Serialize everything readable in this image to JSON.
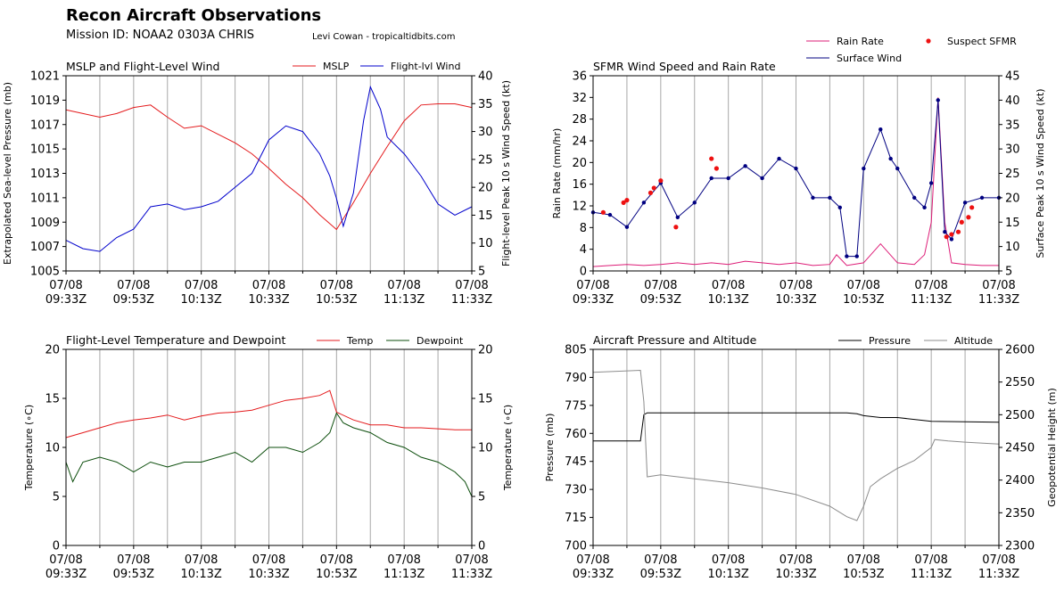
{
  "header": {
    "title": "Recon Aircraft Observations",
    "mission": "Mission ID: NOAA2 0303A CHRIS",
    "credit": "Levi Cowan - tropicaltidbits.com"
  },
  "time_ticks": [
    "07/08\n09:33Z",
    "07/08\n09:53Z",
    "07/08\n10:13Z",
    "07/08\n10:33Z",
    "07/08\n10:53Z",
    "07/08\n11:13Z",
    "07/08\n11:33Z"
  ],
  "chart_data": [
    {
      "id": "mslp_wind",
      "type": "line",
      "title": "MSLP and Flight-Level Wind",
      "xlabel": "",
      "ylabel": "Extrapolated Sea-level Pressure (mb)",
      "y2label": "Flight-level Peak 10 s Wind Speed (kt)",
      "xlim_minutes": [
        0,
        120
      ],
      "ylim": [
        1005,
        1021
      ],
      "yticks": [
        1005,
        1007,
        1009,
        1011,
        1013,
        1015,
        1017,
        1019,
        1021
      ],
      "y2lim": [
        5,
        40
      ],
      "y2ticks": [
        5,
        10,
        15,
        20,
        25,
        30,
        35,
        40
      ],
      "legend": "top-right",
      "series": [
        {
          "name": "MSLP",
          "axis": "left",
          "color": "#e41a1c",
          "x": [
            0,
            5,
            10,
            15,
            20,
            25,
            30,
            35,
            40,
            45,
            50,
            55,
            60,
            65,
            70,
            75,
            80,
            85,
            90,
            95,
            100,
            105,
            110,
            115,
            120
          ],
          "values": [
            1018.2,
            1017.9,
            1017.6,
            1017.9,
            1018.4,
            1018.6,
            1017.6,
            1016.7,
            1016.9,
            1016.2,
            1015.5,
            1014.6,
            1013.4,
            1012.1,
            1011.0,
            1009.6,
            1008.4,
            1010.6,
            1013.0,
            1015.2,
            1017.3,
            1018.6,
            1018.7,
            1018.7,
            1018.4
          ]
        },
        {
          "name": "Flight-lvl Wind",
          "axis": "right",
          "color": "#0000cc",
          "x": [
            0,
            5,
            10,
            15,
            20,
            25,
            30,
            35,
            40,
            45,
            50,
            55,
            60,
            65,
            70,
            75,
            78,
            80,
            82,
            85,
            88,
            90,
            93,
            95,
            100,
            105,
            110,
            115,
            120
          ],
          "values": [
            10.5,
            9,
            8.5,
            11,
            12.5,
            16.5,
            17,
            16,
            16.5,
            17.5,
            20,
            22.5,
            28.5,
            31,
            30,
            26,
            22,
            18,
            13,
            19,
            32,
            38,
            34,
            29,
            26,
            22,
            17,
            15,
            16.5
          ]
        }
      ]
    },
    {
      "id": "sfmr_rain",
      "type": "line",
      "title": "SFMR Wind Speed and Rain Rate",
      "xlabel": "",
      "ylabel": "Rain Rate (mm/hr)",
      "y2label": "Surface Peak 10 s Wind Speed (kt)",
      "xlim_minutes": [
        0,
        120
      ],
      "ylim": [
        0,
        36
      ],
      "yticks": [
        0,
        4,
        8,
        12,
        16,
        20,
        24,
        28,
        32,
        36
      ],
      "y2lim": [
        5,
        45
      ],
      "y2ticks": [
        5,
        10,
        15,
        20,
        25,
        30,
        35,
        40,
        45
      ],
      "legend": "above-top-right",
      "series": [
        {
          "name": "Rain Rate",
          "axis": "left",
          "color": "#dd1c77",
          "x": [
            0,
            5,
            10,
            15,
            20,
            25,
            30,
            35,
            40,
            45,
            50,
            55,
            60,
            65,
            70,
            72,
            75,
            80,
            85,
            90,
            95,
            98,
            100,
            102,
            104,
            106,
            110,
            115,
            120
          ],
          "values": [
            0.8,
            1,
            1.2,
            1,
            1.2,
            1.5,
            1.2,
            1.5,
            1.2,
            1.8,
            1.5,
            1.2,
            1.5,
            1.0,
            1.2,
            3,
            1.0,
            1.5,
            5,
            1.5,
            1.2,
            3,
            9,
            32,
            9,
            1.5,
            1.2,
            1.0,
            1.0
          ]
        },
        {
          "name": "Surface Wind",
          "axis": "right",
          "color": "#000080",
          "x": [
            0,
            5,
            10,
            15,
            20,
            25,
            30,
            35,
            40,
            45,
            50,
            55,
            60,
            65,
            70,
            73,
            75,
            78,
            80,
            85,
            88,
            90,
            95,
            98,
            100,
            102,
            104,
            106,
            110,
            115,
            120
          ],
          "values": [
            17,
            16.5,
            14,
            19,
            23,
            16,
            19,
            24,
            24,
            26.5,
            24,
            28,
            26,
            20,
            20,
            18,
            8,
            8,
            26,
            34,
            28,
            26,
            20,
            18,
            23,
            40,
            13,
            11.5,
            19,
            20,
            20
          ]
        },
        {
          "name": "Suspect SFMR",
          "axis": "right",
          "color": "#ee1111",
          "x": [
            3,
            9,
            10,
            17,
            18,
            20,
            24.5,
            35,
            36.5,
            104.5,
            106,
            108,
            109,
            111,
            112
          ],
          "values": [
            17,
            19,
            19.5,
            21,
            22,
            23.5,
            14,
            28,
            26,
            12,
            12.5,
            13,
            15,
            16,
            18
          ]
        }
      ]
    },
    {
      "id": "temp_dew",
      "type": "line",
      "title": "Flight-Level Temperature and Dewpoint",
      "xlabel": "",
      "ylabel": "Temperature (∘C)",
      "y2label": "Temperature (∘C)",
      "xlim_minutes": [
        0,
        120
      ],
      "ylim": [
        0,
        20
      ],
      "yticks": [
        0,
        5,
        10,
        15,
        20
      ],
      "legend": "top-right",
      "series": [
        {
          "name": "Temp",
          "color": "#e41a1c",
          "x": [
            0,
            5,
            10,
            15,
            20,
            25,
            30,
            35,
            40,
            45,
            50,
            55,
            60,
            65,
            70,
            75,
            78,
            80,
            85,
            90,
            95,
            100,
            105,
            110,
            115,
            120
          ],
          "values": [
            11,
            11.5,
            12,
            12.5,
            12.8,
            13,
            13.3,
            12.8,
            13.2,
            13.5,
            13.6,
            13.8,
            14.3,
            14.8,
            15.0,
            15.3,
            15.8,
            13.6,
            12.8,
            12.3,
            12.3,
            12.0,
            12.0,
            11.9,
            11.8,
            11.8
          ]
        },
        {
          "name": "Dewpoint",
          "color": "#0b4d0b",
          "x": [
            0,
            2,
            5,
            10,
            15,
            20,
            25,
            30,
            35,
            40,
            45,
            50,
            55,
            60,
            65,
            70,
            75,
            78,
            80,
            82,
            85,
            90,
            95,
            100,
            105,
            110,
            115,
            118,
            120
          ],
          "values": [
            8.5,
            6.5,
            8.5,
            9,
            8.5,
            7.5,
            8.5,
            8,
            8.5,
            8.5,
            9,
            9.5,
            8.5,
            10,
            10,
            9.5,
            10.5,
            11.5,
            13.5,
            12.5,
            12,
            11.5,
            10.5,
            10,
            9,
            8.5,
            7.5,
            6.5,
            5
          ]
        }
      ]
    },
    {
      "id": "press_alt",
      "type": "line",
      "title": "Aircraft Pressure and Altitude",
      "xlabel": "",
      "ylabel": "Pressure (mb)",
      "y2label": "Geopotential Height (m)",
      "xlim_minutes": [
        0,
        120
      ],
      "ylim": [
        700,
        805
      ],
      "yticks": [
        700,
        715,
        730,
        745,
        760,
        775,
        790,
        805
      ],
      "y2lim": [
        2300,
        2600
      ],
      "y2ticks": [
        2300,
        2350,
        2400,
        2450,
        2500,
        2550,
        2600
      ],
      "legend": "top-right",
      "series": [
        {
          "name": "Pressure",
          "axis": "left",
          "color": "#000000",
          "x": [
            0,
            14,
            15,
            16,
            30,
            50,
            60,
            70,
            75,
            78,
            80,
            85,
            90,
            95,
            100,
            120
          ],
          "values": [
            756,
            756,
            770,
            771,
            771,
            771,
            771,
            771,
            771,
            770.5,
            769.5,
            768.5,
            768.5,
            767.5,
            766.5,
            766
          ]
        },
        {
          "name": "Altitude",
          "axis": "right",
          "color": "#8c8c8c",
          "x": [
            0,
            14,
            15,
            16,
            20,
            30,
            40,
            50,
            60,
            70,
            75,
            78,
            80,
            82,
            85,
            90,
            95,
            100,
            101,
            105,
            110,
            120
          ],
          "values": [
            2565,
            2568,
            2520,
            2405,
            2408,
            2402,
            2396,
            2388,
            2378,
            2360,
            2344,
            2338,
            2360,
            2390,
            2402,
            2418,
            2430,
            2450,
            2462,
            2460,
            2458,
            2455
          ]
        }
      ]
    }
  ]
}
